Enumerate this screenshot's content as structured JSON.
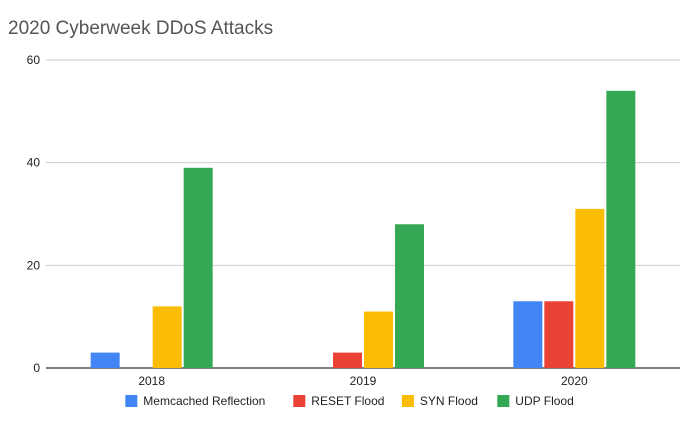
{
  "chart_data": {
    "type": "bar",
    "title": "2020 Cyberweek DDoS Attacks",
    "xlabel": "",
    "ylabel": "",
    "categories": [
      "2018",
      "2019",
      "2020"
    ],
    "ylim": [
      0,
      60
    ],
    "yticks": [
      "0",
      "20",
      "40",
      "60"
    ],
    "grid": true,
    "legend_position": "bottom",
    "series": [
      {
        "name": "Memcached Reflection",
        "color": "#4285f4",
        "values": [
          3,
          0,
          13
        ]
      },
      {
        "name": "RESET Flood",
        "color": "#ea4335",
        "values": [
          0,
          3,
          13
        ]
      },
      {
        "name": "SYN Flood",
        "color": "#fbbc04",
        "values": [
          12,
          11,
          31
        ]
      },
      {
        "name": "UDP Flood",
        "color": "#34a853",
        "values": [
          39,
          28,
          54
        ]
      }
    ]
  }
}
